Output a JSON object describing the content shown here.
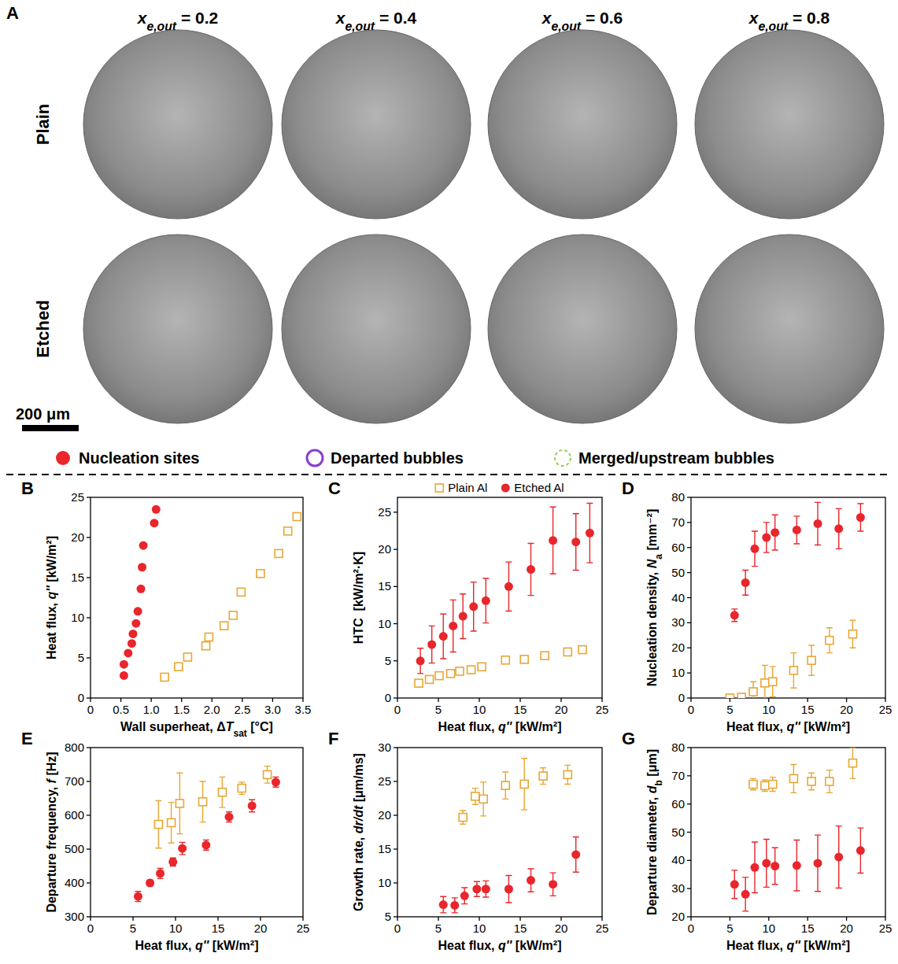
{
  "panel_a": {
    "label": "A",
    "column_titles": [
      [
        {
          "text": "x",
          "style": "italic"
        },
        {
          "text": "e,out",
          "style": "italic-sub"
        },
        {
          "text": " = 0.2"
        }
      ],
      [
        {
          "text": "x",
          "style": "italic"
        },
        {
          "text": "e,out",
          "style": "italic-sub"
        },
        {
          "text": " = 0.4"
        }
      ],
      [
        {
          "text": "x",
          "style": "italic"
        },
        {
          "text": "e,out",
          "style": "italic-sub"
        },
        {
          "text": " = 0.6"
        }
      ],
      [
        {
          "text": "x",
          "style": "italic"
        },
        {
          "text": "e,out",
          "style": "italic-sub"
        },
        {
          "text": " = 0.8"
        }
      ]
    ],
    "row_labels": [
      "Plain",
      "Etched"
    ],
    "scale_bar": "200 μm",
    "legend": [
      {
        "text": "Nucleation sites",
        "marker": "dot",
        "color": "#e8262b"
      },
      {
        "text": "Departed bubbles",
        "marker": "ring",
        "color": "#8a3fd1"
      },
      {
        "text": "Merged/upstream bubbles",
        "marker": "dashed-ring",
        "color": "#8fce5a"
      }
    ]
  },
  "chart_data": [
    {
      "label": "B",
      "type": "scatter",
      "xlabel": [
        {
          "text": "Wall superheat, Δ"
        },
        {
          "text": "T",
          "style": "italic"
        },
        {
          "text": "sat",
          "style": "sub"
        },
        {
          "text": " [°C]"
        }
      ],
      "ylabel": [
        {
          "text": "Heat flux, "
        },
        {
          "text": "q''",
          "style": "italic"
        },
        {
          "text": " [kW/m²]"
        }
      ],
      "xlim": [
        0,
        3.5
      ],
      "xticks": [
        0,
        0.5,
        {
          "value": 1,
          "label": "1.0"
        },
        1.5,
        {
          "value": 2,
          "label": "2.0"
        },
        2.5,
        {
          "value": 3,
          "label": "3.0"
        },
        3.5
      ],
      "ylim": [
        0,
        25
      ],
      "yticks": [
        0,
        5,
        10,
        15,
        20,
        25
      ],
      "series": [
        {
          "color": "#e8a735",
          "marker": "square",
          "x": [
            1.22,
            1.45,
            1.6,
            1.9,
            1.95,
            2.2,
            2.35,
            2.48,
            2.8,
            3.1,
            3.25,
            3.4
          ],
          "values": [
            2.6,
            3.9,
            5.1,
            6.5,
            7.6,
            9.0,
            10.3,
            13.2,
            15.5,
            18.0,
            20.8,
            22.6
          ]
        },
        {
          "color": "#e8262b",
          "marker": "circle",
          "x": [
            0.55,
            0.55,
            0.62,
            0.68,
            0.7,
            0.75,
            0.78,
            0.83,
            0.85,
            0.87,
            1.05,
            1.08
          ],
          "values": [
            2.8,
            4.2,
            5.6,
            6.8,
            8.0,
            9.3,
            10.8,
            13.6,
            16.3,
            19.0,
            21.8,
            23.5
          ]
        }
      ]
    },
    {
      "label": "C",
      "type": "scatter",
      "legend": "top",
      "xlabel": [
        {
          "text": "Heat flux, "
        },
        {
          "text": "q''",
          "style": "italic"
        },
        {
          "text": " [kW/m²]"
        }
      ],
      "ylabel": [
        {
          "text": "HTC  [kW/m²·K]"
        }
      ],
      "xlim": [
        0,
        25
      ],
      "xticks": [
        0,
        5,
        10,
        15,
        20,
        25
      ],
      "ylim": [
        0,
        27
      ],
      "yticks": [
        0,
        5,
        10,
        15,
        20,
        25
      ],
      "series": [
        {
          "name": "Plain Al",
          "color": "#e8a735",
          "marker": "square",
          "x": [
            2.6,
            3.9,
            5.1,
            6.5,
            7.6,
            9.0,
            10.3,
            13.2,
            15.5,
            18.0,
            20.8,
            22.6
          ],
          "values": [
            2.0,
            2.5,
            3.0,
            3.3,
            3.6,
            3.8,
            4.2,
            5.1,
            5.2,
            5.7,
            6.2,
            6.5
          ],
          "errors": [
            0.3,
            0.3,
            0.3,
            0.3,
            0.3,
            0.3,
            0.3,
            0.3,
            0.3,
            0.3,
            0.4,
            0.4
          ]
        },
        {
          "name": "Etched Al",
          "color": "#e8262b",
          "marker": "circle",
          "x": [
            2.8,
            4.2,
            5.6,
            6.8,
            8.0,
            9.3,
            10.8,
            13.6,
            16.3,
            19.0,
            21.8,
            23.5
          ],
          "values": [
            5.0,
            7.2,
            8.3,
            9.7,
            11.0,
            12.3,
            13.1,
            15.0,
            17.3,
            21.2,
            21.0,
            22.2
          ],
          "errors": [
            1.7,
            2.5,
            3.0,
            3.5,
            3.0,
            3.3,
            3.0,
            3.3,
            3.5,
            4.5,
            3.8,
            4.0
          ]
        }
      ]
    },
    {
      "label": "D",
      "type": "scatter",
      "xlabel": [
        {
          "text": "Heat flux, "
        },
        {
          "text": "q''",
          "style": "italic"
        },
        {
          "text": " [kW/m²]"
        }
      ],
      "ylabel": [
        {
          "text": "Nucleation density, "
        },
        {
          "text": "N",
          "style": "italic"
        },
        {
          "text": "a",
          "style": "sub"
        },
        {
          "text": " [mm⁻²]"
        }
      ],
      "xlim": [
        0,
        25
      ],
      "xticks": [
        0,
        5,
        10,
        15,
        20,
        25
      ],
      "ylim": [
        0,
        80
      ],
      "yticks": [
        0,
        10,
        20,
        30,
        40,
        50,
        60,
        70,
        80
      ],
      "series": [
        {
          "color": "#e8a735",
          "marker": "square",
          "x": [
            5.0,
            6.5,
            8.0,
            9.5,
            10.5,
            13.2,
            15.5,
            17.8,
            20.8
          ],
          "values": [
            0,
            0.3,
            2.5,
            6.0,
            6.5,
            11.0,
            15.0,
            23.0,
            25.5
          ],
          "errors": [
            0,
            0.5,
            4.0,
            7.0,
            6.0,
            7.0,
            6.0,
            5.0,
            5.5
          ]
        },
        {
          "color": "#e8262b",
          "marker": "circle",
          "x": [
            5.6,
            7.0,
            8.2,
            9.7,
            10.8,
            13.6,
            16.3,
            19.0,
            21.8
          ],
          "values": [
            33.0,
            46.0,
            59.5,
            64.0,
            66.0,
            67.0,
            69.5,
            67.5,
            72.0
          ],
          "errors": [
            2.5,
            5.0,
            7.0,
            6.0,
            7.0,
            5.5,
            8.5,
            8.0,
            5.5
          ]
        }
      ]
    },
    {
      "label": "E",
      "type": "scatter",
      "xlabel": [
        {
          "text": "Heat flux, "
        },
        {
          "text": "q''",
          "style": "italic"
        },
        {
          "text": " [kW/m²]"
        }
      ],
      "ylabel": [
        {
          "text": "Departure frequency, "
        },
        {
          "text": "f",
          "style": "italic"
        },
        {
          "text": " [Hz]"
        }
      ],
      "xlim": [
        0,
        25
      ],
      "xticks": [
        0,
        5,
        10,
        15,
        20,
        25
      ],
      "ylim": [
        300,
        800
      ],
      "yticks": [
        300,
        400,
        500,
        600,
        700,
        800
      ],
      "series": [
        {
          "color": "#e8a735",
          "marker": "square",
          "x": [
            8.0,
            9.5,
            10.5,
            13.2,
            15.5,
            17.8,
            20.8
          ],
          "values": [
            573,
            578,
            635,
            640,
            668,
            680,
            720
          ],
          "errors": [
            70,
            60,
            90,
            60,
            45,
            18,
            25
          ]
        },
        {
          "color": "#e8262b",
          "marker": "circle",
          "x": [
            5.6,
            7.0,
            8.2,
            9.7,
            10.8,
            13.6,
            16.3,
            19.0,
            21.8
          ],
          "values": [
            360,
            400,
            428,
            462,
            502,
            512,
            595,
            628,
            698
          ],
          "errors": [
            15,
            8,
            15,
            12,
            18,
            15,
            15,
            18,
            15
          ]
        }
      ]
    },
    {
      "label": "F",
      "type": "scatter",
      "xlabel": [
        {
          "text": "Heat flux, "
        },
        {
          "text": "q''",
          "style": "italic"
        },
        {
          "text": " [kW/m²]"
        }
      ],
      "ylabel": [
        {
          "text": "Growth rate, "
        },
        {
          "text": "dr/dt",
          "style": "italic"
        },
        {
          "text": " [μm/ms]"
        }
      ],
      "xlim": [
        0,
        25
      ],
      "xticks": [
        0,
        5,
        10,
        15,
        20,
        25
      ],
      "ylim": [
        5,
        30
      ],
      "yticks": [
        5,
        10,
        15,
        20,
        25,
        30
      ],
      "series": [
        {
          "color": "#e8a735",
          "marker": "square",
          "x": [
            8.0,
            9.5,
            10.5,
            13.2,
            15.5,
            17.8,
            20.8
          ],
          "values": [
            19.7,
            22.8,
            22.4,
            24.4,
            24.6,
            25.8,
            26.0
          ],
          "errors": [
            1.0,
            1.2,
            2.5,
            2.0,
            3.8,
            1.2,
            1.4
          ]
        },
        {
          "color": "#e8262b",
          "marker": "circle",
          "x": [
            5.6,
            7.0,
            8.2,
            9.7,
            10.8,
            13.6,
            16.3,
            19.0,
            21.8
          ],
          "values": [
            6.8,
            6.7,
            8.1,
            9.1,
            9.1,
            9.1,
            10.4,
            9.8,
            14.2
          ],
          "errors": [
            1.2,
            1.1,
            1.2,
            1.1,
            1.2,
            2.0,
            1.7,
            1.7,
            2.6
          ]
        }
      ]
    },
    {
      "label": "G",
      "type": "scatter",
      "xlabel": [
        {
          "text": "Heat flux, "
        },
        {
          "text": "q''",
          "style": "italic"
        },
        {
          "text": " [kW/m²]"
        }
      ],
      "ylabel": [
        {
          "text": "Departure diameter, "
        },
        {
          "text": "d",
          "style": "italic"
        },
        {
          "text": "b",
          "style": "sub"
        },
        {
          "text": " [μm]"
        }
      ],
      "xlim": [
        0,
        25
      ],
      "xticks": [
        0,
        5,
        10,
        15,
        20,
        25
      ],
      "ylim": [
        20,
        80
      ],
      "yticks": [
        20,
        30,
        40,
        50,
        60,
        70,
        80
      ],
      "series": [
        {
          "color": "#e8a735",
          "marker": "square",
          "x": [
            8.0,
            9.5,
            10.5,
            13.2,
            15.5,
            17.8,
            20.8
          ],
          "values": [
            67.0,
            66.5,
            67.0,
            69.0,
            68.0,
            68.0,
            74.5
          ],
          "errors": [
            2.0,
            2.0,
            2.5,
            5.0,
            3.0,
            4.0,
            5.5
          ]
        },
        {
          "color": "#e8262b",
          "marker": "circle",
          "x": [
            5.6,
            7.0,
            8.2,
            9.7,
            10.8,
            13.6,
            16.3,
            19.0,
            21.8
          ],
          "values": [
            31.5,
            28.0,
            37.5,
            39.0,
            38.0,
            38.2,
            39.0,
            41.2,
            43.5
          ],
          "errors": [
            5.0,
            6.0,
            9.0,
            8.5,
            6.5,
            9.0,
            10.0,
            11.0,
            8.0
          ]
        }
      ]
    }
  ]
}
